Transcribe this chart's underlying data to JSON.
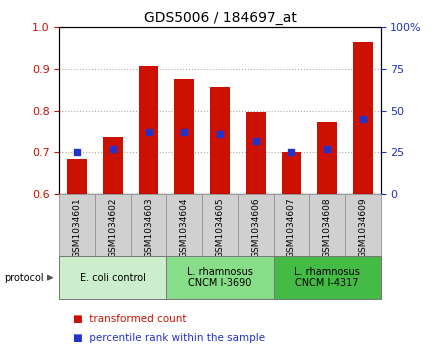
{
  "title": "GDS5006 / 184697_at",
  "samples": [
    "GSM1034601",
    "GSM1034602",
    "GSM1034603",
    "GSM1034604",
    "GSM1034605",
    "GSM1034606",
    "GSM1034607",
    "GSM1034608",
    "GSM1034609"
  ],
  "transformed_count": [
    0.685,
    0.738,
    0.908,
    0.877,
    0.856,
    0.796,
    0.7,
    0.773,
    0.965
  ],
  "percentile_rank": [
    25,
    27,
    37,
    37,
    36,
    32,
    25,
    27,
    45
  ],
  "ylim": [
    0.6,
    1.0
  ],
  "yticks_left": [
    0.6,
    0.7,
    0.8,
    0.9,
    1.0
  ],
  "yticks_right": [
    0,
    25,
    50,
    75,
    100
  ],
  "bar_color": "#cc1100",
  "dot_color": "#2233cc",
  "bar_bottom": 0.6,
  "protocols": [
    {
      "label": "E. coli control",
      "start": 0,
      "end": 3,
      "color": "#cceecc"
    },
    {
      "label": "L. rhamnosus\nCNCM I-3690",
      "start": 3,
      "end": 6,
      "color": "#88dd88"
    },
    {
      "label": "L. rhamnosus\nCNCM I-4317",
      "start": 6,
      "end": 9,
      "color": "#44bb44"
    }
  ],
  "legend_bar_label": "transformed count",
  "legend_dot_label": "percentile rank within the sample",
  "left_tick_color": "#cc1100",
  "right_tick_color": "#2233bb",
  "grid_color": "#aaaaaa",
  "sample_box_color": "#d0d0d0",
  "sample_box_edge": "#999999"
}
